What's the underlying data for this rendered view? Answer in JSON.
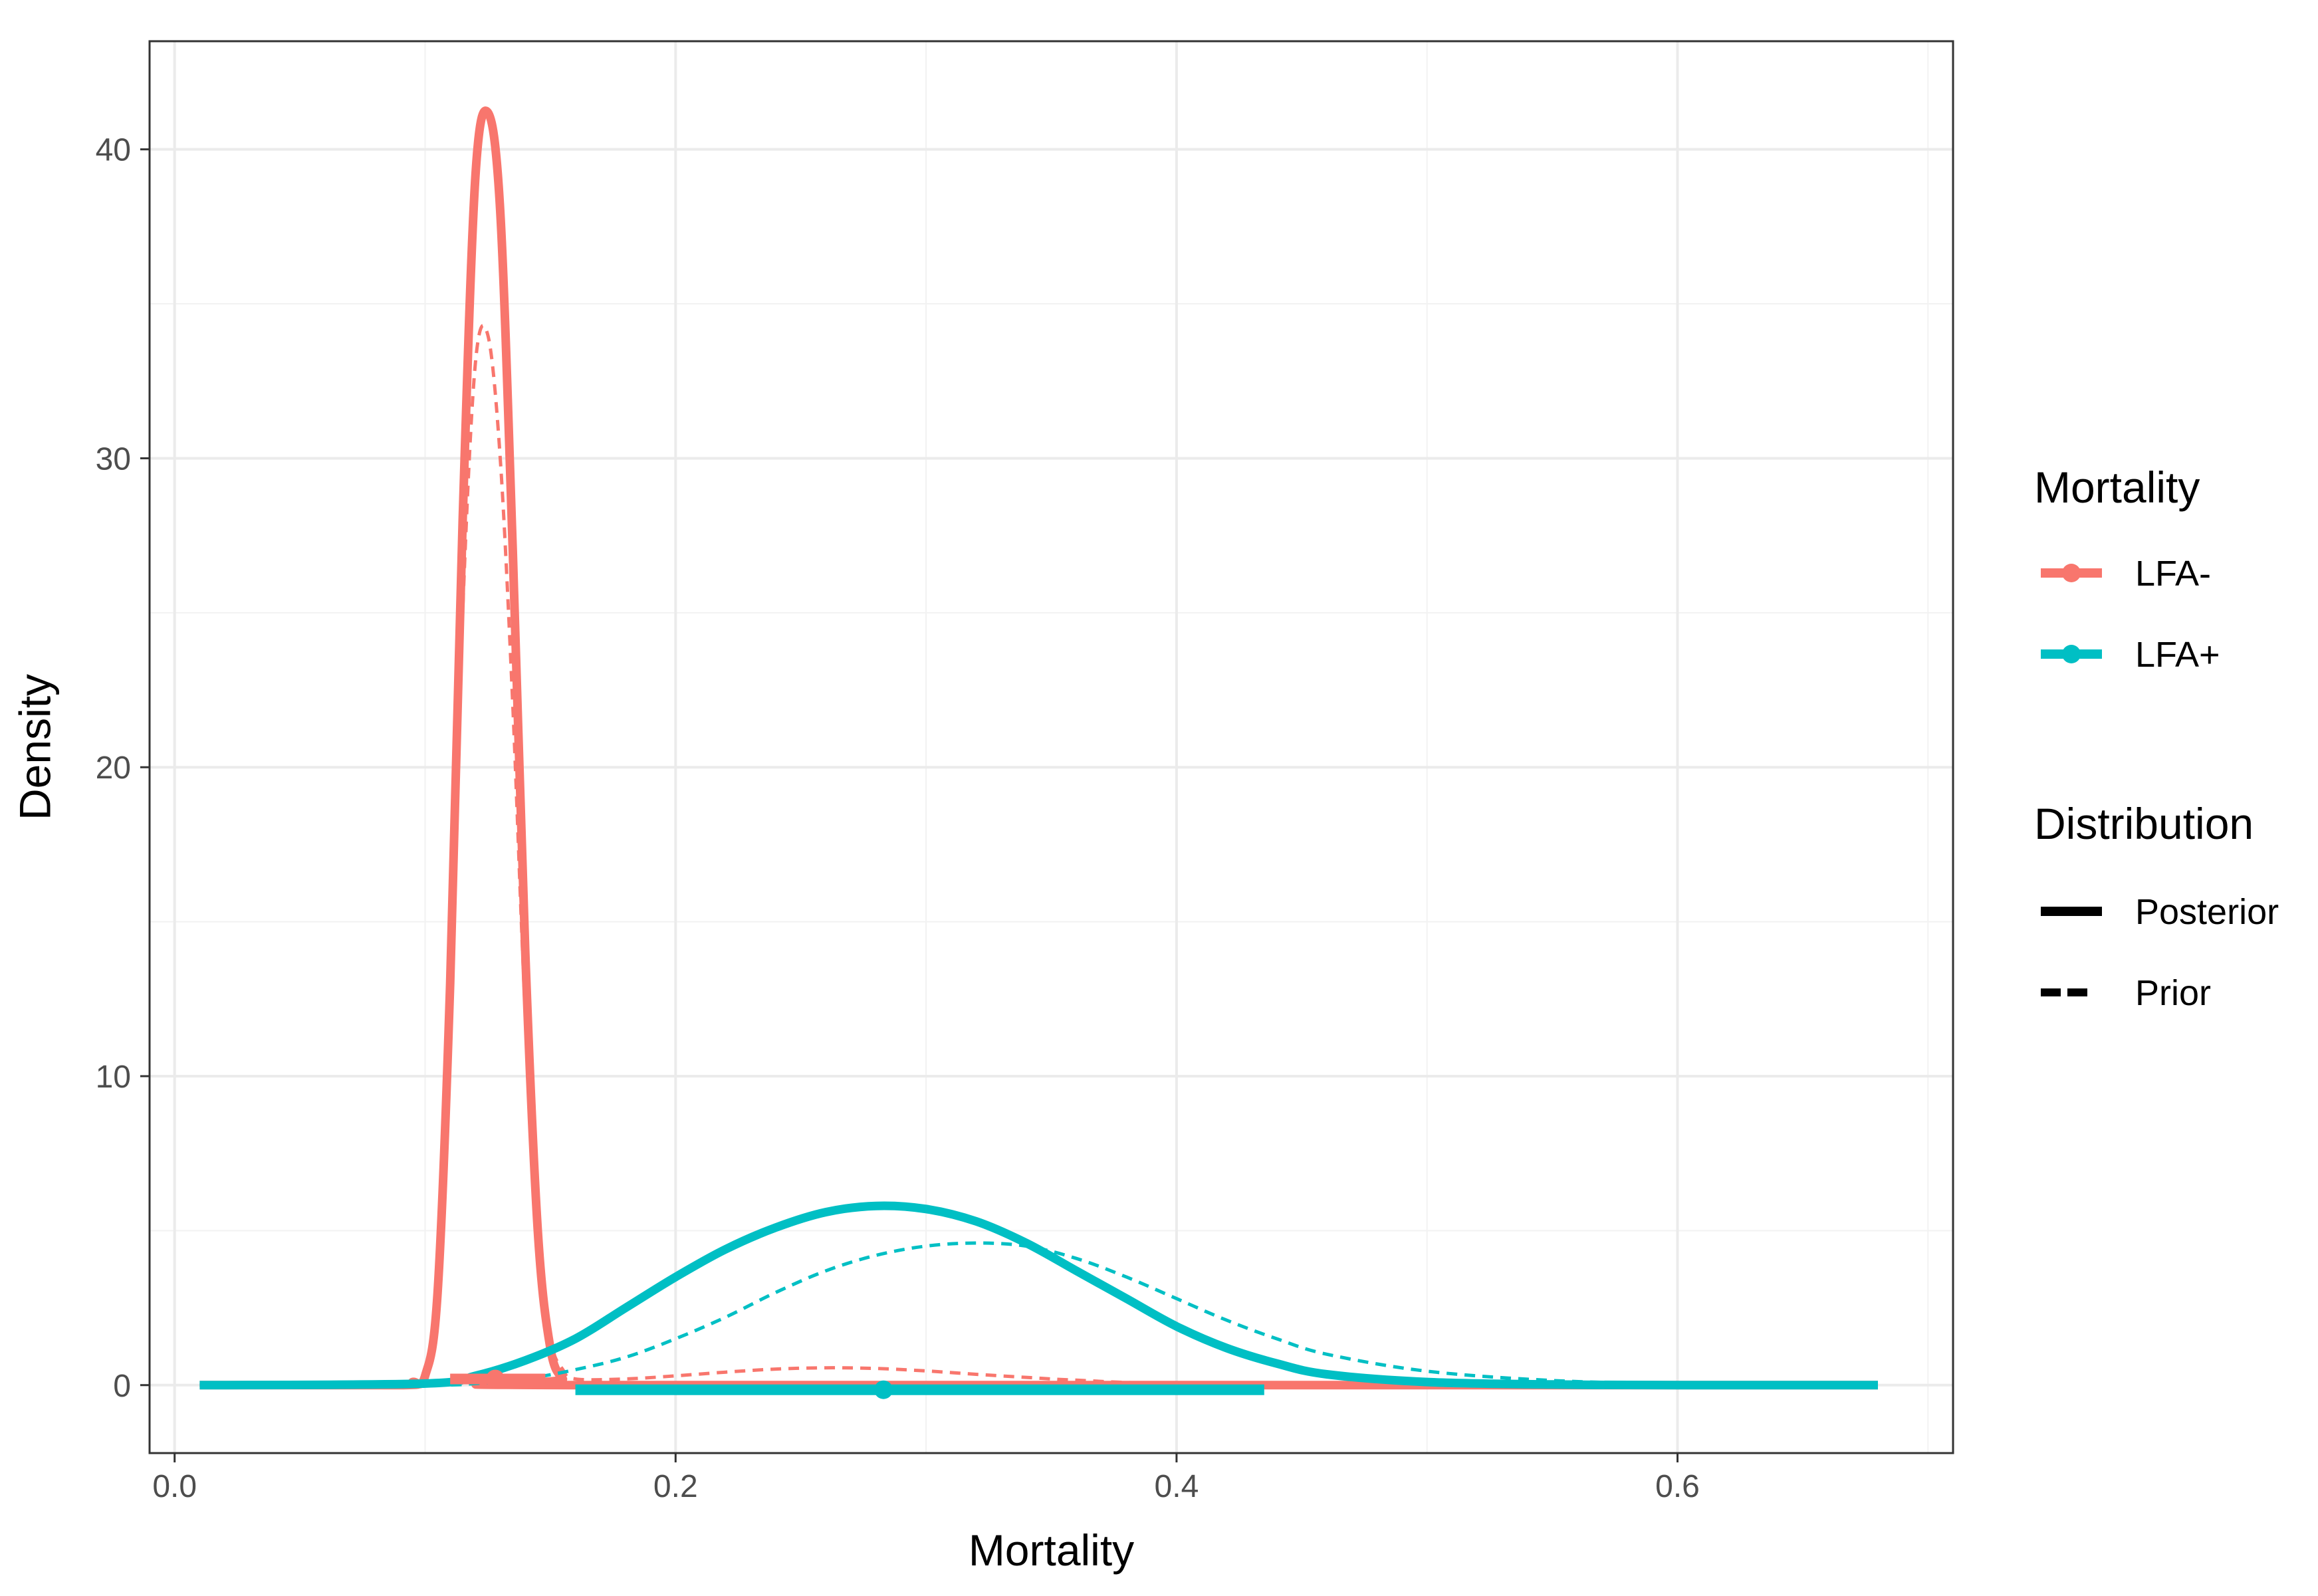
{
  "chart_data": {
    "type": "line",
    "title": "",
    "xlabel": "Mortality",
    "ylabel": "Density",
    "xlim": [
      -0.01,
      0.71
    ],
    "ylim": [
      -2.2,
      43.5
    ],
    "xticks": [
      0.0,
      0.2,
      0.4,
      0.6
    ],
    "xtick_labels": [
      "0.0",
      "0.2",
      "0.4",
      "0.6"
    ],
    "yticks": [
      0,
      10,
      20,
      30,
      40
    ],
    "ytick_labels": [
      "0",
      "10",
      "20",
      "30",
      "40"
    ],
    "grid": true,
    "legend_position": "right",
    "legends": [
      {
        "title": "Mortality",
        "entries": [
          {
            "label": "LFA-",
            "color": "#F8766D"
          },
          {
            "label": "LFA+",
            "color": "#00BFC4"
          }
        ]
      },
      {
        "title": "Distribution",
        "entries": [
          {
            "label": "Posterior",
            "linetype": "solid"
          },
          {
            "label": "Prior",
            "linetype": "dashed"
          }
        ]
      }
    ],
    "series": [
      {
        "group": "LFA-",
        "distribution": "Prior",
        "color": "#F8766D",
        "linetype": "dashed",
        "x": [
          0.01,
          0.08,
          0.095,
          0.1,
          0.105,
          0.11,
          0.115,
          0.12,
          0.125,
          0.13,
          0.135,
          0.14,
          0.145,
          0.15,
          0.155,
          0.16,
          0.18,
          0.2,
          0.22,
          0.24,
          0.26,
          0.28,
          0.3,
          0.32,
          0.34,
          0.36,
          0.4,
          0.5,
          0.68
        ],
        "y": [
          0,
          0,
          0.1,
          0.3,
          3.0,
          12.0,
          25.0,
          33.0,
          34.0,
          30.0,
          22.0,
          12.0,
          5.0,
          1.5,
          0.5,
          0.2,
          0.2,
          0.3,
          0.42,
          0.52,
          0.56,
          0.54,
          0.46,
          0.35,
          0.25,
          0.16,
          0.05,
          0,
          0
        ]
      },
      {
        "group": "LFA-",
        "distribution": "Posterior",
        "color": "#F8766D",
        "linetype": "solid",
        "x": [
          0.01,
          0.09,
          0.095,
          0.1,
          0.105,
          0.11,
          0.115,
          0.12,
          0.125,
          0.13,
          0.135,
          0.14,
          0.145,
          0.15,
          0.155,
          0.16,
          0.68
        ],
        "y": [
          0,
          0,
          0.1,
          0.3,
          3.0,
          13.0,
          28.0,
          39.0,
          41.2,
          38.0,
          27.0,
          14.0,
          5.0,
          1.2,
          0.2,
          0,
          0
        ]
      },
      {
        "group": "LFA+",
        "distribution": "Prior",
        "color": "#00BFC4",
        "linetype": "dashed",
        "x": [
          0.01,
          0.1,
          0.12,
          0.14,
          0.16,
          0.18,
          0.2,
          0.22,
          0.24,
          0.26,
          0.28,
          0.3,
          0.32,
          0.34,
          0.36,
          0.38,
          0.4,
          0.42,
          0.44,
          0.46,
          0.5,
          0.55,
          0.6,
          0.68
        ],
        "y": [
          0,
          0,
          0.05,
          0.2,
          0.5,
          0.9,
          1.5,
          2.2,
          3.0,
          3.7,
          4.2,
          4.5,
          4.6,
          4.5,
          4.1,
          3.5,
          2.8,
          2.1,
          1.5,
          1.0,
          0.45,
          0.15,
          0.05,
          0
        ]
      },
      {
        "group": "LFA+",
        "distribution": "Posterior",
        "color": "#00BFC4",
        "linetype": "solid",
        "x": [
          0.01,
          0.1,
          0.12,
          0.14,
          0.16,
          0.18,
          0.2,
          0.22,
          0.24,
          0.26,
          0.28,
          0.3,
          0.32,
          0.34,
          0.36,
          0.38,
          0.4,
          0.42,
          0.44,
          0.46,
          0.5,
          0.55,
          0.6,
          0.68
        ],
        "y": [
          0,
          0.05,
          0.3,
          0.8,
          1.5,
          2.5,
          3.5,
          4.4,
          5.1,
          5.6,
          5.8,
          5.7,
          5.3,
          4.6,
          3.7,
          2.8,
          1.9,
          1.2,
          0.7,
          0.35,
          0.1,
          0.02,
          0,
          0
        ]
      }
    ],
    "intervals": [
      {
        "group": "LFA-",
        "color": "#F8766D",
        "lower": 0.11,
        "upper": 0.148,
        "point": 0.128,
        "y": 0.2
      },
      {
        "group": "LFA+",
        "color": "#00BFC4",
        "lower": 0.16,
        "upper": 0.435,
        "point": 0.283,
        "y": -0.15
      }
    ]
  }
}
